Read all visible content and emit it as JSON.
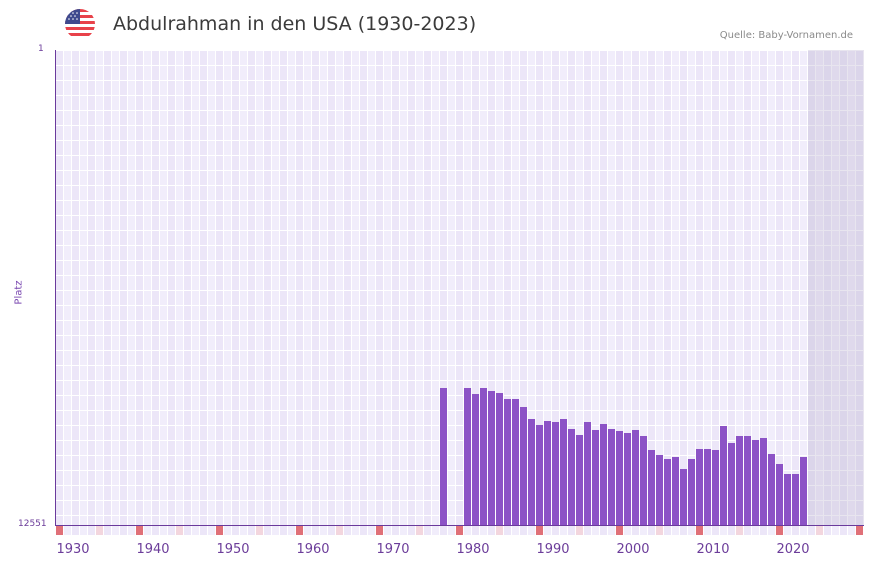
{
  "header": {
    "title": "Abdulrahman in den USA (1930-2023)",
    "flag_icon": "us-flag-icon",
    "source": "Quelle: Baby-Vornamen.de"
  },
  "colors": {
    "bar": "#8c53c6",
    "axis": "#6a3a9c",
    "grid_a": "#f1edfb",
    "grid_b": "#ece6f8",
    "future_shade": "#e2ddec",
    "marker_decade": "#e07078",
    "marker_half": "#f3d6de"
  },
  "chart_data": {
    "type": "bar",
    "title": "Abdulrahman in den USA (1930-2023)",
    "xlabel": "",
    "ylabel": "Platz",
    "y_axis_inverted": true,
    "ylim": [
      12551,
      1
    ],
    "y_ticks": [
      "1",
      "12551"
    ],
    "x_ticks": [
      "1930",
      "1940",
      "1950",
      "1960",
      "1970",
      "1980",
      "1990",
      "2000",
      "2010",
      "2020"
    ],
    "x_range": [
      1928,
      2028
    ],
    "grid": true,
    "future_shaded_from": 2022,
    "note": "Values are rank (Platz); lower bar = worse rank. Ranks estimated from bar heights on a linear scale 1 (top) to 12551 (bottom).",
    "categories": [
      1976,
      1979,
      1980,
      1981,
      1982,
      1983,
      1984,
      1985,
      1986,
      1987,
      1988,
      1989,
      1990,
      1991,
      1992,
      1993,
      1994,
      1995,
      1996,
      1997,
      1998,
      1999,
      2000,
      2001,
      2002,
      2003,
      2004,
      2005,
      2006,
      2007,
      2008,
      2009,
      2010,
      2011,
      2012,
      2013,
      2014,
      2015,
      2016,
      2017,
      2018,
      2019,
      2020,
      2021
    ],
    "values": [
      8938,
      8938,
      9097,
      8938,
      9018,
      9071,
      9229,
      9229,
      9441,
      9758,
      9916,
      9811,
      9837,
      9758,
      10022,
      10181,
      9837,
      10049,
      9890,
      10022,
      10075,
      10128,
      10049,
      10207,
      10577,
      10709,
      10815,
      10762,
      11079,
      10815,
      10551,
      10551,
      10577,
      9943,
      10392,
      10207,
      10207,
      10313,
      10260,
      10683,
      10947,
      11211,
      11211,
      10762
    ]
  }
}
